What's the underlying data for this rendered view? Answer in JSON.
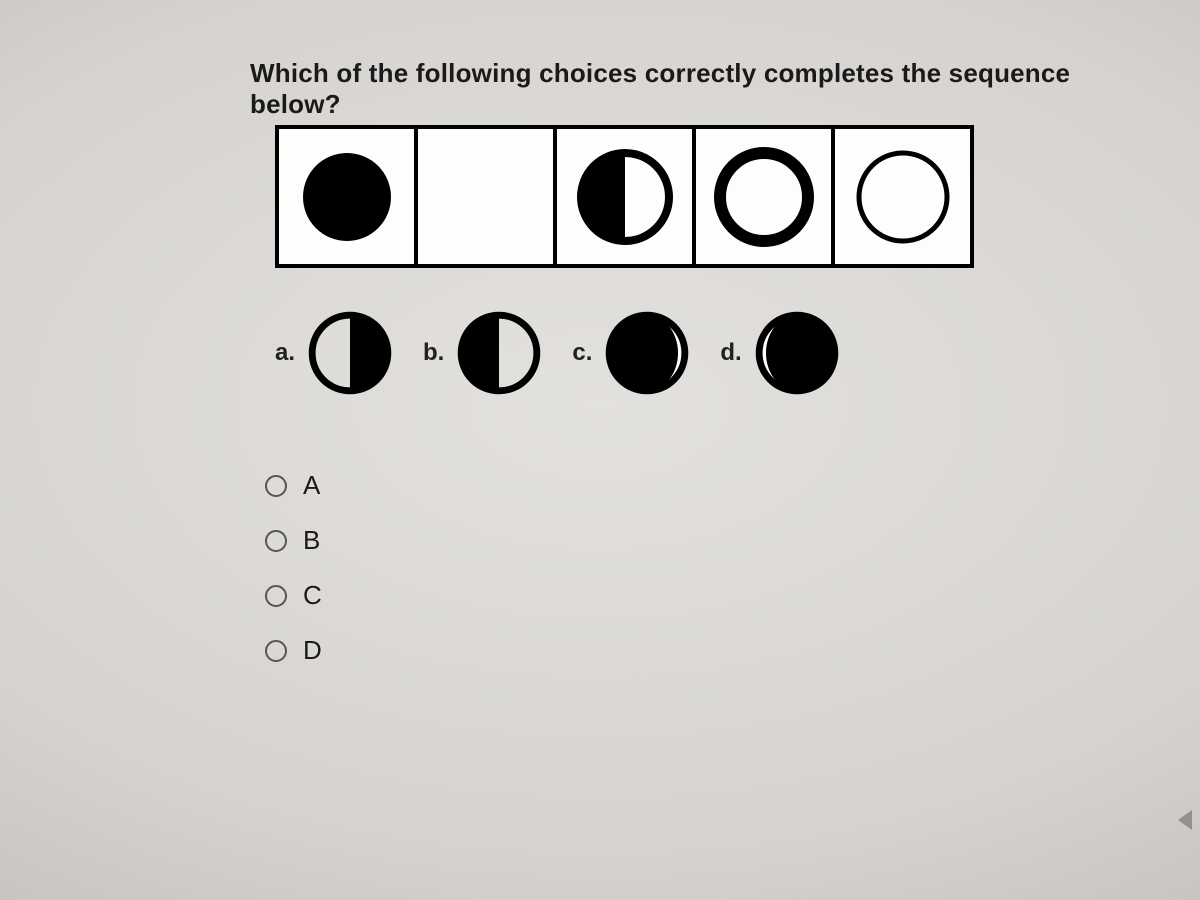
{
  "question": "Which of the following choices correctly completes the sequence below?",
  "colors": {
    "stroke": "#000000",
    "fill": "#000000",
    "cell_bg": "#fdfdfb"
  },
  "glyph_style": {
    "radius": 44,
    "stroke_width": 8
  },
  "sequence_cells": [
    {
      "kind": "full"
    },
    {
      "kind": "blank"
    },
    {
      "kind": "half_left_filled"
    },
    {
      "kind": "ring_thick"
    },
    {
      "kind": "ring_thin"
    }
  ],
  "option_glyphs": [
    {
      "label": "a.",
      "kind": "half_right_filled"
    },
    {
      "label": "b.",
      "kind": "half_left_filled"
    },
    {
      "label": "c.",
      "kind": "mostly_full_right_sliver"
    },
    {
      "label": "d.",
      "kind": "mostly_full_left_sliver"
    }
  ],
  "answers": [
    {
      "label": "A"
    },
    {
      "label": "B"
    },
    {
      "label": "C"
    },
    {
      "label": "D"
    }
  ]
}
